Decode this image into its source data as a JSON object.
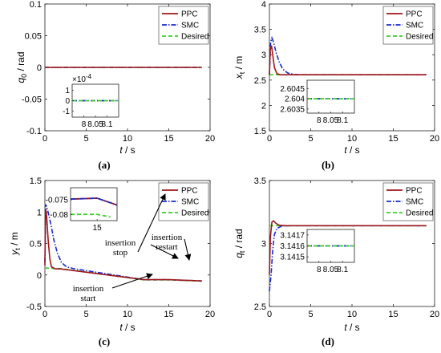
{
  "series_styles": [
    {
      "name": "PPC",
      "color": "#a0161b",
      "dash": ""
    },
    {
      "name": "SMC",
      "color": "#1a2bd1",
      "dash": "6,2,1.5,2"
    },
    {
      "name": "Desired",
      "color": "#3ecf2a",
      "dash": "5,3"
    }
  ],
  "chart_data": [
    {
      "id": "a",
      "type": "line",
      "caption": "(a)",
      "ylabel_main": "q",
      "ylabel_sub": "0",
      "ylabel_unit": " / rad",
      "xlabel_main": "t",
      "xlabel_unit": " / s",
      "xlim": [
        0,
        20
      ],
      "ylim": [
        -0.1,
        0.1
      ],
      "xticks": [
        "0",
        "5",
        "10",
        "15",
        "20"
      ],
      "xtick_vals": [
        0,
        5,
        10,
        15,
        20
      ],
      "yticks": [
        "-0.1",
        "-0.05",
        "0",
        "0.05",
        "0.1"
      ],
      "ytick_vals": [
        -0.1,
        -0.05,
        0,
        0.05,
        0.1
      ],
      "legend": [
        "PPC",
        "SMC",
        "Desired"
      ],
      "series": [
        {
          "name": "PPC",
          "points": [
            [
              0,
              0
            ],
            [
              19,
              0
            ]
          ]
        },
        {
          "name": "SMC",
          "points": [
            [
              0,
              0
            ],
            [
              19,
              0
            ]
          ]
        },
        {
          "name": "Desired",
          "points": [
            [
              0,
              0
            ],
            [
              19,
              0
            ]
          ]
        }
      ],
      "inset": {
        "xlim": [
          7.95,
          8.15
        ],
        "ylim": [
          -1.6,
          1.6
        ],
        "xticks": [
          "8",
          "8.05",
          "8.1"
        ],
        "xtick_vals": [
          8,
          8.05,
          8.1
        ],
        "yticks": [
          "1",
          "0",
          "-1"
        ],
        "ytick_vals": [
          1,
          0,
          -1
        ],
        "exponent": "×10",
        "exponent_power": "-4",
        "series": [
          {
            "name": "SMC",
            "points": [
              [
                7.95,
                0
              ],
              [
                8.15,
                0
              ]
            ]
          },
          {
            "name": "Desired",
            "points": [
              [
                7.95,
                0
              ],
              [
                8.15,
                0
              ]
            ]
          }
        ]
      }
    },
    {
      "id": "b",
      "type": "line",
      "caption": "(b)",
      "ylabel_main": "x",
      "ylabel_sub": "t",
      "ylabel_unit": " / m",
      "xlabel_main": "t",
      "xlabel_unit": " / s",
      "xlim": [
        0,
        20
      ],
      "ylim": [
        1.5,
        4
      ],
      "xticks": [
        "0",
        "5",
        "10",
        "15",
        "20"
      ],
      "xtick_vals": [
        0,
        5,
        10,
        15,
        20
      ],
      "yticks": [
        "1.5",
        "2",
        "2.5",
        "3",
        "3.5",
        "4"
      ],
      "ytick_vals": [
        1.5,
        2,
        2.5,
        3,
        3.5,
        4
      ],
      "legend": [
        "PPC",
        "SMC",
        "Desired"
      ],
      "series": [
        {
          "name": "PPC",
          "points": [
            [
              0,
              2.6
            ],
            [
              0.1,
              3.1
            ],
            [
              0.25,
              3.18
            ],
            [
              0.4,
              3.0
            ],
            [
              0.6,
              2.75
            ],
            [
              0.9,
              2.63
            ],
            [
              1.3,
              2.604
            ],
            [
              19,
              2.604
            ]
          ]
        },
        {
          "name": "SMC",
          "points": [
            [
              0,
              2.6
            ],
            [
              0.15,
              3.25
            ],
            [
              0.3,
              3.33
            ],
            [
              0.5,
              3.25
            ],
            [
              0.8,
              3.05
            ],
            [
              1.2,
              2.85
            ],
            [
              1.6,
              2.72
            ],
            [
              2.2,
              2.64
            ],
            [
              3,
              2.61
            ],
            [
              4,
              2.604
            ],
            [
              19,
              2.604
            ]
          ]
        },
        {
          "name": "Desired",
          "points": [
            [
              0,
              2.604
            ],
            [
              19,
              2.604
            ]
          ]
        }
      ],
      "inset": {
        "xlim": [
          7.95,
          8.15
        ],
        "ylim": [
          2.6033,
          2.6049
        ],
        "xticks": [
          "8",
          "8.05",
          "8.1"
        ],
        "xtick_vals": [
          8,
          8.05,
          8.1
        ],
        "yticks": [
          "2.6045",
          "2.604",
          "2.6035"
        ],
        "ytick_vals": [
          2.6045,
          2.604,
          2.6035
        ],
        "series": [
          {
            "name": "SMC",
            "points": [
              [
                7.95,
                2.604
              ],
              [
                8.15,
                2.604
              ]
            ]
          },
          {
            "name": "Desired",
            "points": [
              [
                7.95,
                2.604
              ],
              [
                8.15,
                2.604
              ]
            ]
          }
        ]
      }
    },
    {
      "id": "c",
      "type": "line",
      "caption": "(c)",
      "ylabel_main": "y",
      "ylabel_sub": "t",
      "ylabel_unit": " / m",
      "xlabel_main": "t",
      "xlabel_unit": " / s",
      "xlim": [
        0,
        20
      ],
      "ylim": [
        -0.5,
        1.5
      ],
      "xticks": [
        "0",
        "5",
        "10",
        "15",
        "20"
      ],
      "xtick_vals": [
        0,
        5,
        10,
        15,
        20
      ],
      "yticks": [
        "-0.5",
        "0",
        "0.5",
        "1",
        "1.5"
      ],
      "ytick_vals": [
        -0.5,
        0,
        0.5,
        1,
        1.5
      ],
      "legend": [
        "PPC",
        "SMC",
        "Desired"
      ],
      "series": [
        {
          "name": "PPC",
          "points": [
            [
              0,
              0.15
            ],
            [
              0.08,
              1.05
            ],
            [
              0.2,
              0.95
            ],
            [
              0.4,
              0.55
            ],
            [
              0.6,
              0.25
            ],
            [
              0.8,
              0.13
            ],
            [
              1.2,
              0.1
            ],
            [
              2,
              0.095
            ],
            [
              12,
              -0.075
            ],
            [
              14,
              -0.075
            ],
            [
              15,
              -0.075
            ],
            [
              19,
              -0.095
            ]
          ]
        },
        {
          "name": "SMC",
          "points": [
            [
              0,
              0.2
            ],
            [
              0.12,
              1.12
            ],
            [
              0.35,
              1.02
            ],
            [
              0.7,
              0.82
            ],
            [
              1.1,
              0.55
            ],
            [
              1.5,
              0.35
            ],
            [
              2,
              0.2
            ],
            [
              2.6,
              0.13
            ],
            [
              3.5,
              0.1
            ],
            [
              12,
              -0.075
            ],
            [
              14,
              -0.075
            ],
            [
              15,
              -0.075
            ],
            [
              19,
              -0.095
            ]
          ]
        },
        {
          "name": "Desired",
          "points": [
            [
              0,
              0.11
            ],
            [
              2,
              0.1
            ],
            [
              12,
              -0.078
            ],
            [
              14,
              -0.078
            ],
            [
              15,
              -0.078
            ],
            [
              19,
              -0.098
            ]
          ]
        }
      ],
      "inset": {
        "xlim": [
          13.4,
          16.2
        ],
        "ylim": [
          -0.082,
          -0.071
        ],
        "xticks": [
          "15"
        ],
        "xtick_vals": [
          15
        ],
        "yticks": [
          "-0.075",
          "-0.08"
        ],
        "ytick_vals": [
          -0.075,
          -0.08
        ],
        "series": [
          {
            "name": "PPC",
            "points": [
              [
                13.4,
                -0.0748
              ],
              [
                15,
                -0.0745
              ],
              [
                16.2,
                -0.0768
              ]
            ]
          },
          {
            "name": "SMC",
            "points": [
              [
                13.4,
                -0.0748
              ],
              [
                15,
                -0.0745
              ],
              [
                16.2,
                -0.0768
              ]
            ]
          },
          {
            "name": "Desired",
            "points": [
              [
                13.4,
                -0.0799
              ],
              [
                15,
                -0.0799
              ],
              [
                15.8,
                -0.0808
              ]
            ]
          }
        ]
      },
      "annotations": [
        {
          "lines": [
            "insertion",
            "start"
          ]
        },
        {
          "lines": [
            "insertion",
            "stop"
          ]
        },
        {
          "lines": [
            "insertion",
            "restart"
          ]
        }
      ]
    },
    {
      "id": "d",
      "type": "line",
      "caption": "(d)",
      "ylabel_main": "q",
      "ylabel_sub": "t",
      "ylabel_unit": " / rad",
      "xlabel_main": "t",
      "xlabel_unit": " / s",
      "xlim": [
        0,
        20
      ],
      "ylim": [
        2.5,
        3.5
      ],
      "xticks": [
        "0",
        "5",
        "10",
        "15",
        "20"
      ],
      "xtick_vals": [
        0,
        5,
        10,
        15,
        20
      ],
      "yticks": [
        "2.5",
        "3",
        "3.5"
      ],
      "ytick_vals": [
        2.5,
        3,
        3.5
      ],
      "legend": [
        "PPC",
        "SMC",
        "Desired"
      ],
      "series": [
        {
          "name": "PPC",
          "points": [
            [
              0,
              2.75
            ],
            [
              0.12,
              3.05
            ],
            [
              0.3,
              3.17
            ],
            [
              0.5,
              3.18
            ],
            [
              0.8,
              3.16
            ],
            [
              1.2,
              3.145
            ],
            [
              2,
              3.1416
            ],
            [
              19,
              3.1416
            ]
          ]
        },
        {
          "name": "SMC",
          "points": [
            [
              0,
              2.62
            ],
            [
              0.2,
              2.75
            ],
            [
              0.4,
              2.95
            ],
            [
              0.6,
              3.07
            ],
            [
              0.9,
              3.12
            ],
            [
              1.5,
              3.138
            ],
            [
              2.5,
              3.1416
            ],
            [
              19,
              3.1416
            ]
          ]
        },
        {
          "name": "Desired",
          "points": [
            [
              0,
              3.1416
            ],
            [
              19,
              3.1416
            ]
          ]
        }
      ],
      "inset": {
        "xlim": [
          7.95,
          8.15
        ],
        "ylim": [
          3.14145,
          3.14175
        ],
        "xticks": [
          "8",
          "8.05",
          "8.1"
        ],
        "xtick_vals": [
          8,
          8.05,
          8.1
        ],
        "yticks": [
          "3.1417",
          "3.1416",
          "3.1415"
        ],
        "ytick_vals": [
          3.1417,
          3.1416,
          3.1415
        ],
        "series": [
          {
            "name": "SMC",
            "points": [
              [
                7.95,
                3.1416
              ],
              [
                8.15,
                3.1416
              ]
            ]
          },
          {
            "name": "Desired",
            "points": [
              [
                7.95,
                3.1416
              ],
              [
                8.15,
                3.1416
              ]
            ]
          }
        ]
      }
    }
  ]
}
